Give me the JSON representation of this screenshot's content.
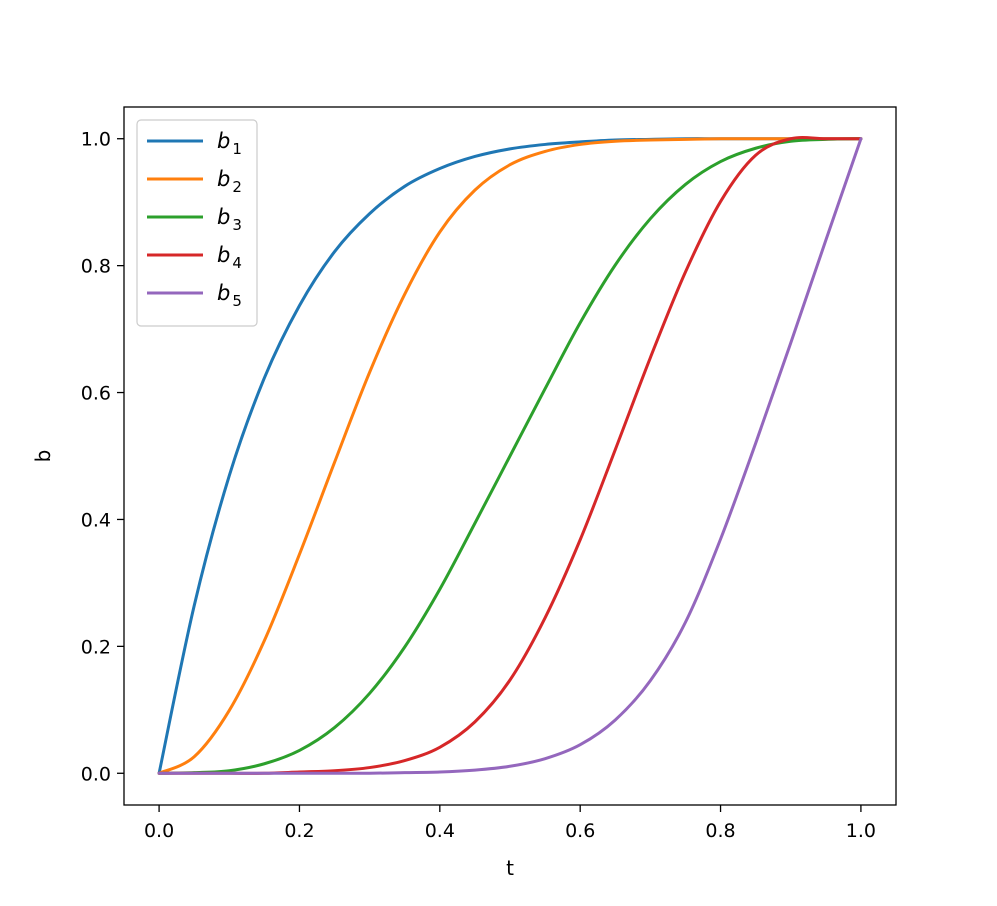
{
  "chart_data": {
    "type": "line",
    "title": "",
    "xlabel": "t",
    "ylabel": "b",
    "xlim": [
      -0.05,
      1.05
    ],
    "ylim": [
      -0.05,
      1.05
    ],
    "xticks": [
      "0.0",
      "0.2",
      "0.4",
      "0.6",
      "0.8",
      "1.0"
    ],
    "yticks": [
      "0.0",
      "0.2",
      "0.4",
      "0.6",
      "0.8",
      "1.0"
    ],
    "grid": false,
    "legend_position": "upper-left",
    "x": [
      0.0,
      0.05,
      0.1,
      0.15,
      0.2,
      0.25,
      0.3,
      0.35,
      0.4,
      0.45,
      0.5,
      0.55,
      0.6,
      0.65,
      0.7,
      0.75,
      0.8,
      0.85,
      0.9,
      0.95,
      1.0
    ],
    "series": [
      {
        "name": "b",
        "sub": "1",
        "color": "#1f77b4",
        "values": [
          0.0,
          0.264,
          0.469,
          0.623,
          0.737,
          0.822,
          0.882,
          0.925,
          0.953,
          0.972,
          0.984,
          0.991,
          0.995,
          0.998,
          0.999,
          1.0,
          1.0,
          1.0,
          1.0,
          1.0,
          1.0
        ]
      },
      {
        "name": "b",
        "sub": "2",
        "color": "#ff7f0e",
        "values": [
          0.0,
          0.026,
          0.099,
          0.209,
          0.345,
          0.49,
          0.632,
          0.755,
          0.853,
          0.919,
          0.959,
          0.98,
          0.991,
          0.996,
          0.998,
          0.999,
          1.0,
          1.0,
          1.0,
          1.0,
          1.0
        ]
      },
      {
        "name": "b",
        "sub": "3",
        "color": "#2ca02c",
        "values": [
          0.0,
          0.001,
          0.004,
          0.015,
          0.036,
          0.072,
          0.126,
          0.199,
          0.29,
          0.394,
          0.5,
          0.606,
          0.71,
          0.801,
          0.874,
          0.928,
          0.964,
          0.985,
          0.996,
          0.999,
          1.0
        ]
      },
      {
        "name": "b",
        "sub": "4",
        "color": "#d62728",
        "values": [
          0.0,
          0.0,
          0.0,
          0.0,
          0.002,
          0.004,
          0.009,
          0.02,
          0.041,
          0.081,
          0.147,
          0.245,
          0.368,
          0.51,
          0.655,
          0.79,
          0.901,
          0.974,
          1.0,
          1.0,
          1.0
        ]
      },
      {
        "name": "b",
        "sub": "5",
        "color": "#9467bd",
        "values": [
          0.0,
          0.0,
          0.0,
          0.0,
          0.0,
          0.0,
          0.0,
          0.001,
          0.002,
          0.005,
          0.011,
          0.023,
          0.045,
          0.084,
          0.146,
          0.238,
          0.369,
          0.52,
          0.678,
          0.84,
          1.0
        ]
      }
    ]
  }
}
